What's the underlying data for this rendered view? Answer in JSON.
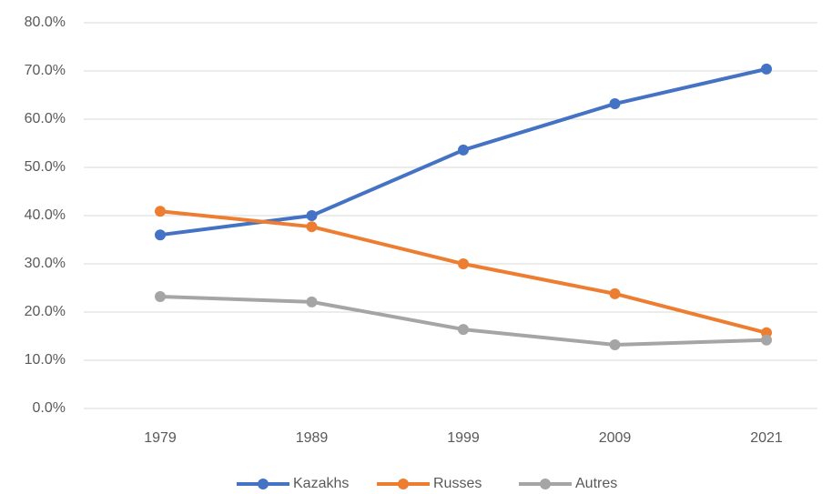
{
  "chart_data": {
    "type": "line",
    "categories": [
      "1979",
      "1989",
      "1999",
      "2009",
      "2021"
    ],
    "series": [
      {
        "name": "Kazakhs",
        "color": "#4472c4",
        "values": [
          36.0,
          40.0,
          53.6,
          63.2,
          70.4
        ]
      },
      {
        "name": "Russes",
        "color": "#ed7d31",
        "values": [
          40.9,
          37.7,
          30.0,
          23.8,
          15.7
        ]
      },
      {
        "name": "Autres",
        "color": "#a5a5a5",
        "values": [
          23.2,
          22.1,
          16.4,
          13.2,
          14.2
        ]
      }
    ],
    "ylim": [
      0,
      80
    ],
    "yticks": [
      {
        "value": 0,
        "label": "0.0%"
      },
      {
        "value": 10,
        "label": "10.0%"
      },
      {
        "value": 20,
        "label": "20.0%"
      },
      {
        "value": 30,
        "label": "30.0%"
      },
      {
        "value": 40,
        "label": "40.0%"
      },
      {
        "value": 50,
        "label": "50.0%"
      },
      {
        "value": 60,
        "label": "60.0%"
      },
      {
        "value": 70,
        "label": "70.0%"
      },
      {
        "value": 80,
        "label": "80.0%"
      }
    ],
    "grid": true,
    "legend": "bottom"
  }
}
